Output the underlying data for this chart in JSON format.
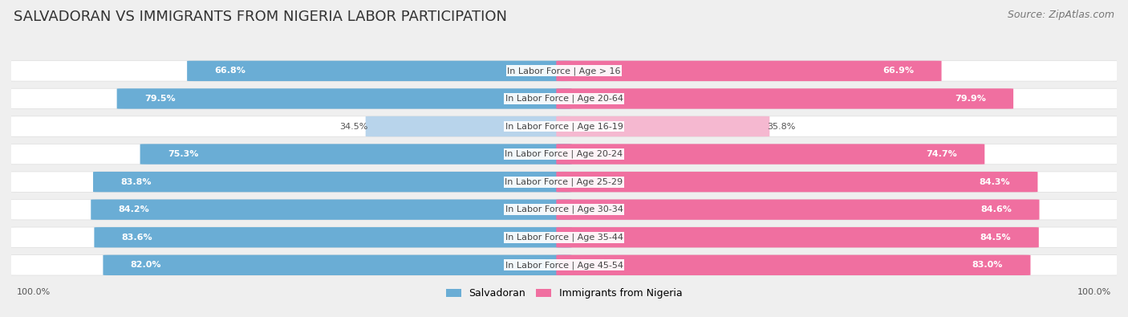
{
  "title": "SALVADORAN VS IMMIGRANTS FROM NIGERIA LABOR PARTICIPATION",
  "source": "Source: ZipAtlas.com",
  "categories": [
    "In Labor Force | Age > 16",
    "In Labor Force | Age 20-64",
    "In Labor Force | Age 16-19",
    "In Labor Force | Age 20-24",
    "In Labor Force | Age 25-29",
    "In Labor Force | Age 30-34",
    "In Labor Force | Age 35-44",
    "In Labor Force | Age 45-54"
  ],
  "salvadoran_values": [
    66.8,
    79.5,
    34.5,
    75.3,
    83.8,
    84.2,
    83.6,
    82.0
  ],
  "nigeria_values": [
    66.9,
    79.9,
    35.8,
    74.7,
    84.3,
    84.6,
    84.5,
    83.0
  ],
  "salvadoran_color": "#6aadd5",
  "salvadoran_color_light": "#b8d4eb",
  "nigeria_color": "#f06fa0",
  "nigeria_color_light": "#f5b8d0",
  "background_color": "#efefef",
  "row_bg_color": "#ffffff",
  "row_bg_border": "#dddddd",
  "max_value": 100.0,
  "legend_salvadoran": "Salvadoran",
  "legend_nigeria": "Immigrants from Nigeria",
  "title_fontsize": 13,
  "source_fontsize": 9,
  "label_fontsize": 8.0,
  "value_fontsize": 8.0
}
